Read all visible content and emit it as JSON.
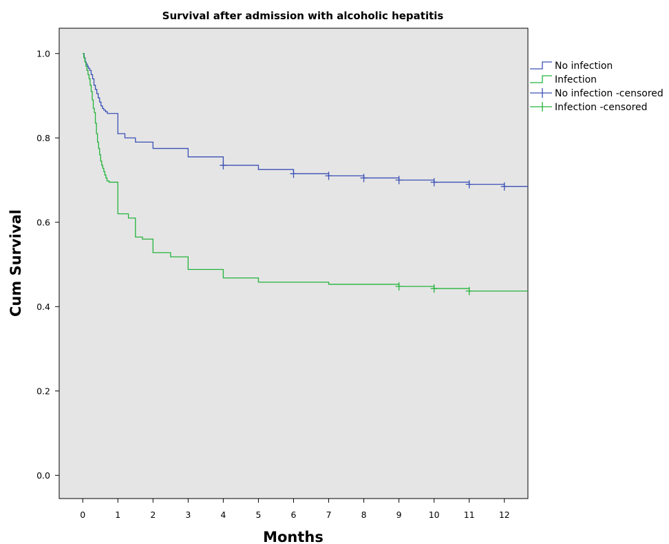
{
  "chart_data": {
    "type": "line",
    "title": "Survival after admission with alcoholic hepatitis",
    "xlabel": "Months",
    "ylabel": "Cum Survival",
    "xlim": [
      -0.67,
      12.67
    ],
    "ylim": [
      -0.055,
      1.06
    ],
    "x_ticks": [
      0,
      1,
      2,
      3,
      4,
      5,
      6,
      7,
      8,
      9,
      10,
      11,
      12
    ],
    "y_ticks": [
      0.0,
      0.2,
      0.4,
      0.6,
      0.8,
      1.0
    ],
    "y_tick_labels": [
      "0.0",
      "0.2",
      "0.4",
      "0.6",
      "0.8",
      "1.0"
    ],
    "grid": false,
    "legend_position": "right",
    "legend": [
      "No infection",
      "Infection",
      "No infection -censored",
      "Infection -censored"
    ],
    "series": [
      {
        "name": "No infection",
        "color": "#3a4fb5",
        "step_x": [
          0,
          0.04,
          0.07,
          0.1,
          0.13,
          0.16,
          0.2,
          0.24,
          0.28,
          0.32,
          0.36,
          0.4,
          0.44,
          0.48,
          0.52,
          0.56,
          0.6,
          0.65,
          0.7,
          1.0,
          1.2,
          1.5,
          2.0,
          3.0,
          4.0,
          5.0,
          6.0,
          7.0,
          8.0,
          9.0,
          10.0,
          11.0,
          12.0
        ],
        "step_y": [
          1.0,
          0.99,
          0.98,
          0.975,
          0.97,
          0.965,
          0.96,
          0.95,
          0.94,
          0.925,
          0.915,
          0.905,
          0.895,
          0.885,
          0.876,
          0.87,
          0.866,
          0.862,
          0.858,
          0.81,
          0.8,
          0.79,
          0.775,
          0.755,
          0.735,
          0.725,
          0.715,
          0.71,
          0.705,
          0.7,
          0.695,
          0.69,
          0.685
        ],
        "end_x": 12.67,
        "censor_x": [
          4.0,
          6.0,
          7.0,
          8.0,
          9.0,
          10.0,
          11.0,
          12.0
        ],
        "censor_y": [
          0.735,
          0.715,
          0.71,
          0.705,
          0.7,
          0.695,
          0.69,
          0.685
        ]
      },
      {
        "name": "Infection",
        "color": "#22b33a",
        "step_x": [
          0,
          0.03,
          0.06,
          0.09,
          0.12,
          0.15,
          0.18,
          0.21,
          0.24,
          0.27,
          0.3,
          0.33,
          0.36,
          0.39,
          0.42,
          0.45,
          0.48,
          0.51,
          0.54,
          0.57,
          0.6,
          0.63,
          0.66,
          0.69,
          0.75,
          1.0,
          1.3,
          1.5,
          1.7,
          2.0,
          2.5,
          3.0,
          4.0,
          5.0,
          7.0,
          9.0,
          10.0,
          11.0
        ],
        "step_y": [
          1.0,
          0.99,
          0.98,
          0.97,
          0.96,
          0.95,
          0.94,
          0.925,
          0.91,
          0.89,
          0.87,
          0.86,
          0.835,
          0.81,
          0.79,
          0.775,
          0.76,
          0.745,
          0.735,
          0.728,
          0.72,
          0.712,
          0.705,
          0.698,
          0.695,
          0.62,
          0.61,
          0.565,
          0.56,
          0.528,
          0.518,
          0.488,
          0.468,
          0.458,
          0.453,
          0.448,
          0.443,
          0.437
        ],
        "end_x": 12.67,
        "censor_x": [
          9.0,
          10.0,
          11.0
        ],
        "censor_y": [
          0.448,
          0.443,
          0.437
        ]
      }
    ]
  }
}
